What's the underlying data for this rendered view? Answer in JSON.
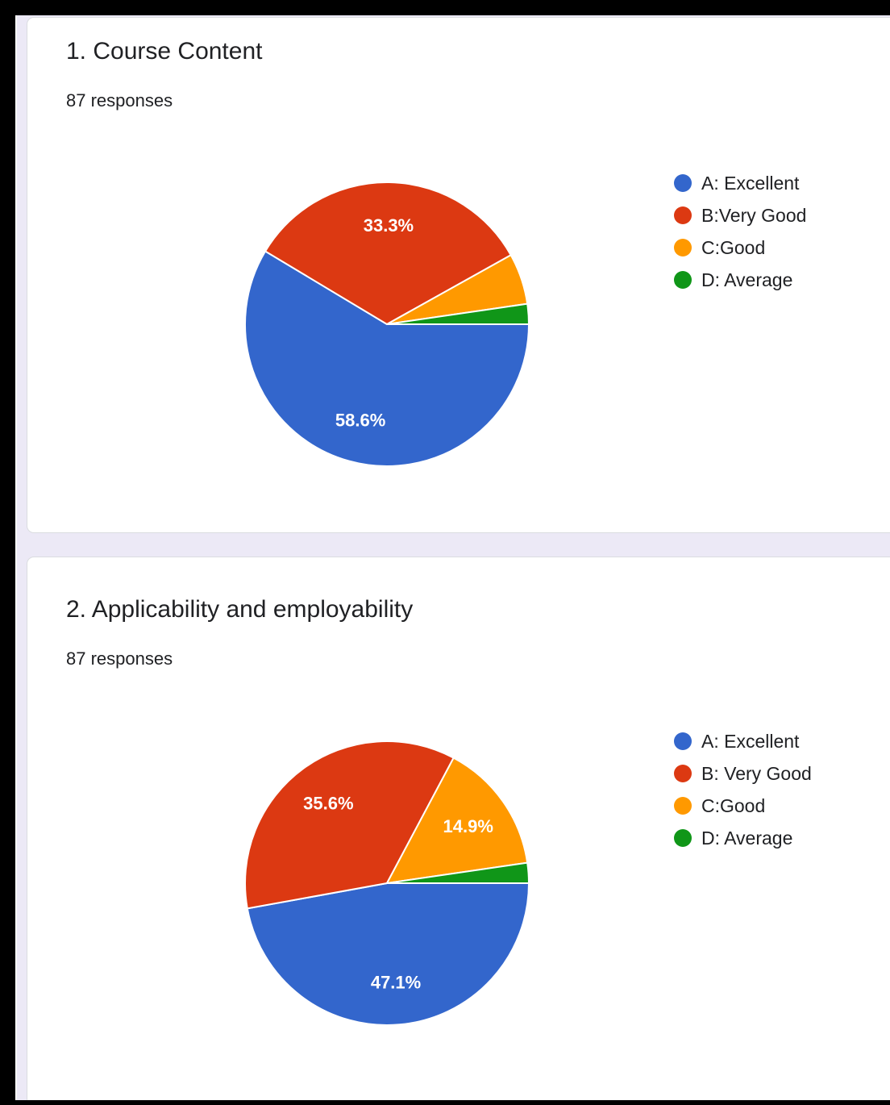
{
  "colors": {
    "excellent": "#3366cc",
    "very_good": "#dc3912",
    "good": "#ff9900",
    "average": "#109618"
  },
  "cards": [
    {
      "title": "1. Course Content",
      "responses": "87 responses",
      "legend": [
        {
          "label": "A: Excellent",
          "color_key": "excellent"
        },
        {
          "label": "B:Very Good",
          "color_key": "very_good"
        },
        {
          "label": "C:Good",
          "color_key": "good"
        },
        {
          "label": "D: Average",
          "color_key": "average"
        }
      ]
    },
    {
      "title": "2. Applicability and employability",
      "responses": "87 responses",
      "legend": [
        {
          "label": "A: Excellent",
          "color_key": "excellent"
        },
        {
          "label": "B: Very Good",
          "color_key": "very_good"
        },
        {
          "label": "C:Good",
          "color_key": "good"
        },
        {
          "label": "D: Average",
          "color_key": "average"
        }
      ]
    }
  ],
  "chart_data": [
    {
      "type": "pie",
      "title": "1. Course Content",
      "categories": [
        "A: Excellent",
        "B:Very Good",
        "C:Good",
        "D: Average"
      ],
      "values": [
        58.6,
        33.3,
        5.8,
        2.3
      ],
      "data_labels": [
        "58.6%",
        "33.3%",
        "",
        ""
      ],
      "legend": "right"
    },
    {
      "type": "pie",
      "title": "2. Applicability and employability",
      "categories": [
        "A: Excellent",
        "B: Very Good",
        "C:Good",
        "D: Average"
      ],
      "values": [
        47.1,
        35.6,
        14.9,
        2.3
      ],
      "data_labels": [
        "47.1%",
        "35.6%",
        "14.9%",
        ""
      ],
      "legend": "right"
    }
  ]
}
